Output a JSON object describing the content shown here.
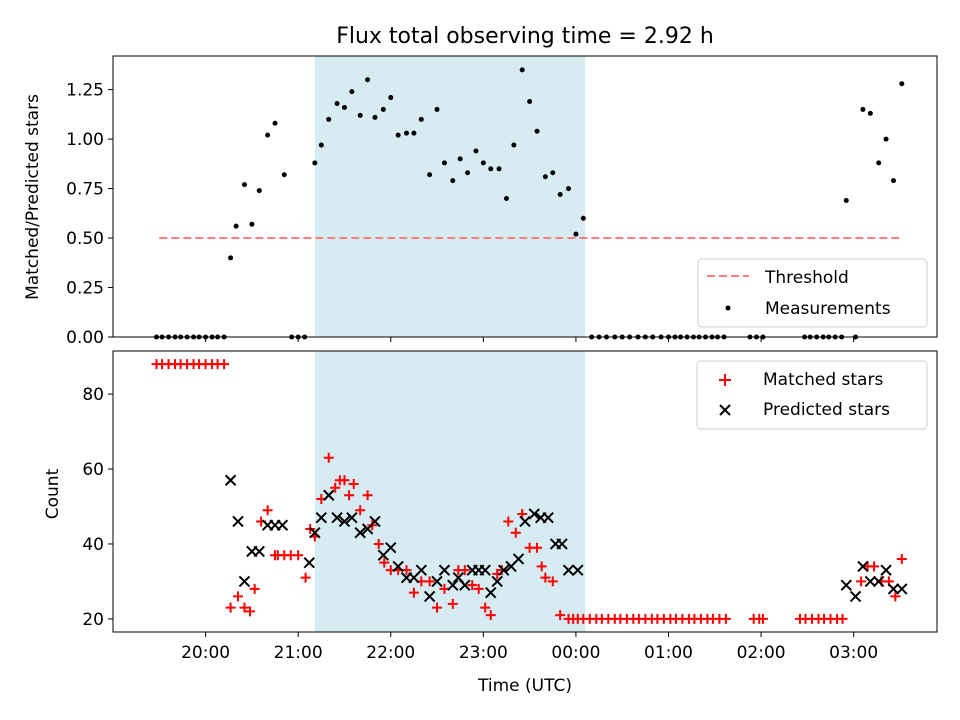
{
  "chart_data": [
    {
      "type": "scatter",
      "title": "Flux total observing time = 2.92 h",
      "xlabel": "",
      "ylabel": "Matched/Predicted stars",
      "x_unit": "hours (UTC, continuous; 24 = 00:00, 27 = 03:00)",
      "xlim": [
        19.0,
        27.9
      ],
      "ylim": [
        0.0,
        1.42
      ],
      "yticks": [
        0.0,
        0.25,
        0.5,
        0.75,
        1.0,
        1.25
      ],
      "ytick_labels": [
        "0.00",
        "0.25",
        "0.50",
        "0.75",
        "1.00",
        "1.25"
      ],
      "grid": false,
      "legend": "lower right",
      "highlight_span": {
        "from": 21.18,
        "to": 24.1,
        "color": "#add8e6"
      },
      "series": [
        {
          "name": "Threshold",
          "style": "dashed-line",
          "color": "#ff7f7f",
          "x": [
            19.5,
            27.5
          ],
          "y": [
            0.5,
            0.5
          ]
        },
        {
          "name": "Measurements",
          "style": "point",
          "color": "#000000",
          "x": [
            19.47,
            19.53,
            19.6,
            19.67,
            19.73,
            19.8,
            19.87,
            19.93,
            20.0,
            20.07,
            20.13,
            20.2,
            20.27,
            20.33,
            20.42,
            20.5,
            20.58,
            20.67,
            20.75,
            20.85,
            20.93,
            21.0,
            21.07,
            21.18,
            21.25,
            21.33,
            21.42,
            21.5,
            21.58,
            21.67,
            21.75,
            21.83,
            21.92,
            22.0,
            22.08,
            22.17,
            22.25,
            22.33,
            22.42,
            22.5,
            22.58,
            22.67,
            22.75,
            22.83,
            22.92,
            23.0,
            23.08,
            23.17,
            23.25,
            23.33,
            23.42,
            23.5,
            23.58,
            23.67,
            23.75,
            23.83,
            23.92,
            24.0,
            24.08,
            24.17,
            24.25,
            24.33,
            24.42,
            24.5,
            24.58,
            24.67,
            24.75,
            24.83,
            24.92,
            25.0,
            25.07,
            25.13,
            25.2,
            25.27,
            25.33,
            25.4,
            25.47,
            25.53,
            25.6,
            25.88,
            25.95,
            26.02,
            26.47,
            26.53,
            26.6,
            26.67,
            26.73,
            26.8,
            26.87,
            27.02,
            26.92,
            27.1,
            27.18,
            27.27,
            27.35,
            27.43,
            27.52
          ],
          "y": [
            0,
            0,
            0,
            0,
            0,
            0,
            0,
            0,
            0,
            0,
            0,
            0,
            0.4,
            0.56,
            0.77,
            0.57,
            0.74,
            1.02,
            1.08,
            0.82,
            0,
            0,
            0,
            0.88,
            0.97,
            1.1,
            1.18,
            1.16,
            1.24,
            1.12,
            1.3,
            1.11,
            1.15,
            1.21,
            1.02,
            1.03,
            1.03,
            1.1,
            0.82,
            1.15,
            0.88,
            0.79,
            0.9,
            0.83,
            0.94,
            0.88,
            0.85,
            0.85,
            0.7,
            0.97,
            1.35,
            1.19,
            1.04,
            0.81,
            0.83,
            0.72,
            0.75,
            0.52,
            0.6,
            0,
            0,
            0,
            0,
            0,
            0,
            0,
            0,
            0,
            0,
            0,
            0,
            0,
            0,
            0,
            0,
            0,
            0,
            0,
            0,
            0,
            0,
            0,
            0,
            0,
            0,
            0,
            0,
            0,
            0,
            0,
            0.69,
            1.15,
            1.13,
            0.88,
            1.0,
            0.79,
            1.28
          ]
        }
      ]
    },
    {
      "type": "scatter",
      "title": "",
      "xlabel": "Time (UTC)",
      "ylabel": "Count",
      "x_unit": "hours (UTC, continuous; 24 = 00:00, 27 = 03:00)",
      "xlim": [
        19.0,
        27.9
      ],
      "ylim": [
        16.5,
        91.5
      ],
      "yticks": [
        20,
        40,
        60,
        80
      ],
      "ytick_labels": [
        "20",
        "40",
        "60",
        "80"
      ],
      "xticks": [
        20,
        21,
        22,
        23,
        24,
        25,
        26,
        27
      ],
      "xtick_labels": [
        "20:00",
        "21:00",
        "22:00",
        "23:00",
        "00:00",
        "01:00",
        "02:00",
        "03:00"
      ],
      "grid": false,
      "legend": "top right",
      "highlight_span": {
        "from": 21.18,
        "to": 24.1,
        "color": "#add8e6"
      },
      "series": [
        {
          "name": "Matched stars",
          "marker": "plus",
          "color": "#ff0000",
          "x": [
            19.47,
            19.53,
            19.6,
            19.67,
            19.73,
            19.8,
            19.87,
            19.93,
            20.0,
            20.07,
            20.13,
            20.2,
            20.27,
            20.35,
            20.42,
            20.48,
            20.53,
            20.6,
            20.67,
            20.75,
            20.78,
            20.85,
            20.92,
            21.0,
            21.08,
            21.13,
            21.18,
            21.25,
            21.33,
            21.4,
            21.45,
            21.5,
            21.55,
            21.6,
            21.67,
            21.75,
            21.8,
            21.87,
            21.93,
            22.0,
            22.08,
            22.17,
            22.25,
            22.33,
            22.42,
            22.5,
            22.58,
            22.67,
            22.73,
            22.8,
            22.88,
            22.95,
            23.02,
            23.08,
            23.15,
            23.2,
            23.27,
            23.35,
            23.42,
            23.5,
            23.58,
            23.63,
            23.67,
            23.75,
            23.83,
            23.92,
            23.97,
            24.02,
            24.08,
            24.15,
            24.22,
            24.28,
            24.35,
            24.42,
            24.48,
            24.55,
            24.62,
            24.68,
            24.75,
            24.82,
            24.88,
            24.95,
            25.02,
            25.08,
            25.15,
            25.22,
            25.28,
            25.35,
            25.42,
            25.48,
            25.55,
            25.62,
            25.92,
            25.98,
            26.02,
            26.42,
            26.48,
            26.55,
            26.62,
            26.68,
            26.75,
            26.82,
            26.88,
            27.08,
            27.15,
            27.22,
            27.3,
            27.38,
            27.45,
            27.52
          ],
          "y": [
            88,
            88,
            88,
            88,
            88,
            88,
            88,
            88,
            88,
            88,
            88,
            88,
            23,
            26,
            23,
            22,
            28,
            46,
            49,
            37,
            37,
            37,
            37,
            37,
            31,
            44,
            42,
            52,
            63,
            55,
            57,
            57,
            53,
            56,
            49,
            53,
            45,
            40,
            35,
            33,
            33,
            33,
            27,
            30,
            30,
            23,
            28,
            24,
            33,
            33,
            29,
            28,
            23,
            21,
            32,
            33,
            46,
            43,
            48,
            39,
            39,
            34,
            31,
            30,
            21,
            20,
            20,
            20,
            20,
            20,
            20,
            20,
            20,
            20,
            20,
            20,
            20,
            20,
            20,
            20,
            20,
            20,
            20,
            20,
            20,
            20,
            20,
            20,
            20,
            20,
            20,
            20,
            20,
            20,
            20,
            20,
            20,
            20,
            20,
            20,
            20,
            20,
            20,
            30,
            34,
            34,
            30,
            30,
            26,
            36
          ]
        },
        {
          "name": "Predicted stars",
          "marker": "x",
          "color": "#000000",
          "x": [
            20.27,
            20.35,
            20.42,
            20.5,
            20.58,
            20.67,
            20.75,
            20.83,
            21.12,
            21.18,
            21.25,
            21.33,
            21.42,
            21.5,
            21.58,
            21.67,
            21.75,
            21.83,
            21.92,
            22.0,
            22.08,
            22.17,
            22.25,
            22.33,
            22.42,
            22.5,
            22.58,
            22.67,
            22.73,
            22.8,
            22.88,
            22.95,
            23.02,
            23.08,
            23.15,
            23.22,
            23.3,
            23.38,
            23.45,
            23.55,
            23.62,
            23.7,
            23.78,
            23.85,
            23.92,
            24.02,
            26.92,
            27.02,
            27.1,
            27.18,
            27.27,
            27.35,
            27.43,
            27.52
          ],
          "y": [
            57,
            46,
            30,
            38,
            38,
            45,
            45,
            45,
            35,
            43,
            47,
            53,
            47,
            46,
            47,
            43,
            44,
            46,
            37,
            39,
            34,
            31,
            31,
            33,
            26,
            30,
            33,
            29,
            31,
            29,
            33,
            33,
            33,
            27,
            30,
            33,
            34,
            36,
            46,
            48,
            47,
            47,
            40,
            40,
            33,
            33,
            29,
            26,
            34,
            30,
            30,
            33,
            28,
            28
          ]
        }
      ]
    }
  ]
}
